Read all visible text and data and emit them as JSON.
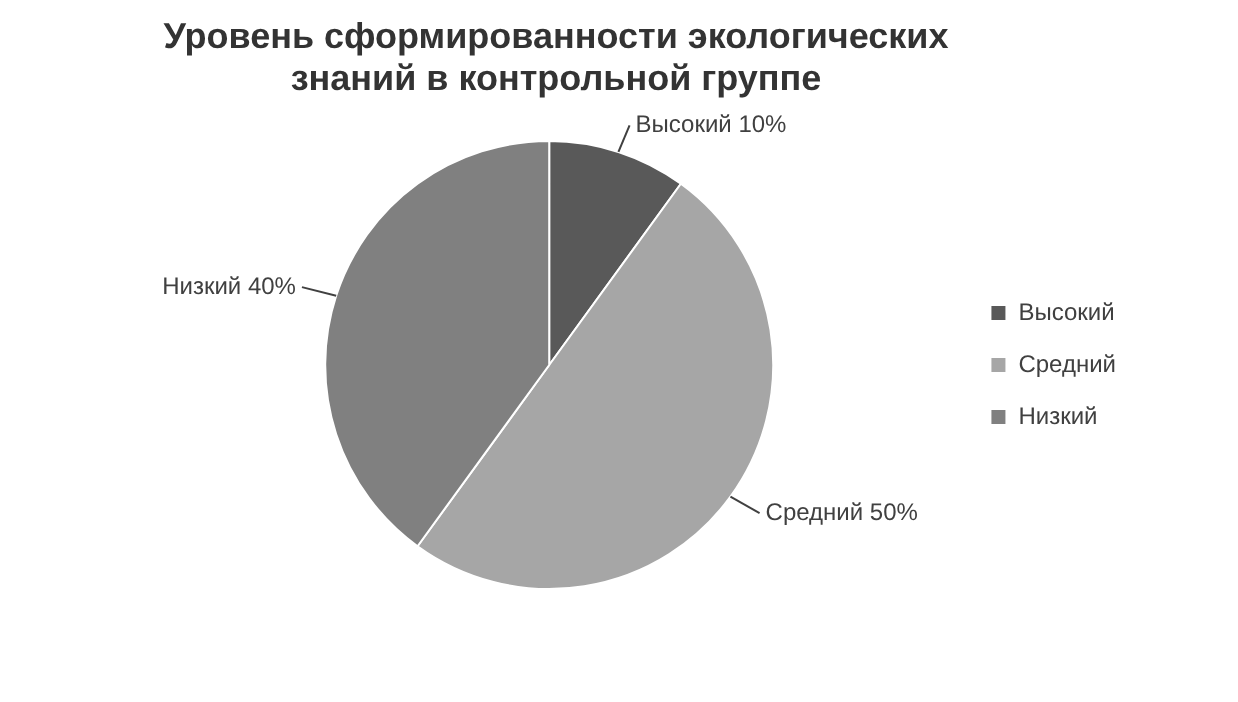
{
  "chart_data": {
    "type": "pie",
    "title": "Уровень сформированности экологических знаний в контрольной группе",
    "categories": [
      "Высокий",
      "Средний",
      "Низкий"
    ],
    "values": [
      10,
      50,
      40
    ],
    "value_labels": [
      "Высокий 10%",
      "Средний 50%",
      "Низкий 40%"
    ],
    "colors": [
      "#595959",
      "#a6a6a6",
      "#808080"
    ],
    "legend": "right"
  }
}
